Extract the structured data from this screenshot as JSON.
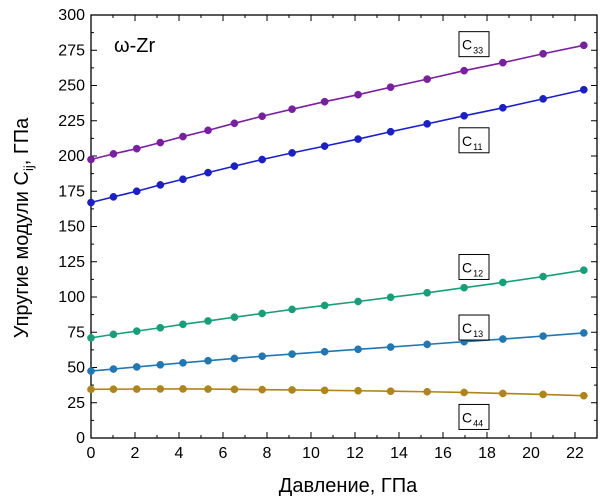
{
  "chart_data": {
    "type": "line",
    "title": "",
    "annotation": "ω-Zr",
    "xlabel": "Давление, ГПа",
    "ylabel_main": "Упругие модули C",
    "ylabel_sub": "ij",
    "ylabel_unit": ",  ГПа",
    "xlim": [
      0,
      23
    ],
    "ylim": [
      0,
      300
    ],
    "xticks": [
      0,
      2,
      4,
      6,
      8,
      10,
      12,
      14,
      16,
      18,
      20,
      22
    ],
    "yticks": [
      0,
      25,
      50,
      75,
      100,
      125,
      150,
      175,
      200,
      225,
      250,
      275,
      300
    ],
    "grid": false,
    "x": [
      0,
      1.02,
      2.08,
      3.15,
      4.18,
      5.32,
      6.52,
      7.78,
      9.14,
      10.62,
      12.14,
      13.62,
      15.28,
      16.96,
      18.72,
      20.55,
      22.4
    ],
    "series": [
      {
        "name": "C",
        "sub": "33",
        "color": "#7b1fa2",
        "values": [
          197.5,
          201.5,
          205.2,
          209.5,
          213.8,
          218.2,
          223.2,
          228.2,
          233.2,
          238.5,
          243.5,
          248.8,
          254.5,
          260.5,
          266.2,
          272.5,
          278.5
        ]
      },
      {
        "name": "C",
        "sub": "11",
        "color": "#1a1fcc",
        "values": [
          167.0,
          171.0,
          175.0,
          179.5,
          183.5,
          188.2,
          192.8,
          197.5,
          202.2,
          207.0,
          212.0,
          217.2,
          222.8,
          228.5,
          234.2,
          240.5,
          247.0
        ]
      },
      {
        "name": "C",
        "sub": "12",
        "color": "#16a07a",
        "values": [
          71.0,
          73.5,
          75.8,
          78.2,
          80.6,
          83.0,
          85.7,
          88.3,
          91.2,
          94.0,
          96.8,
          99.8,
          103.0,
          106.6,
          110.3,
          114.5,
          119.0
        ]
      },
      {
        "name": "C",
        "sub": "13",
        "color": "#1f77b4",
        "values": [
          47.5,
          48.9,
          50.4,
          51.9,
          53.3,
          54.8,
          56.4,
          58.0,
          59.5,
          61.2,
          62.9,
          64.5,
          66.4,
          68.3,
          70.2,
          72.3,
          74.5
        ]
      },
      {
        "name": "C",
        "sub": "44",
        "color": "#b08418",
        "values": [
          34.5,
          34.6,
          34.7,
          34.8,
          34.8,
          34.7,
          34.5,
          34.3,
          34.1,
          33.8,
          33.5,
          33.2,
          32.8,
          32.3,
          31.6,
          30.9,
          30.0
        ]
      }
    ],
    "series_label_positions": [
      "top-right of curve",
      "below curve at right",
      "above curve at right",
      "above curve at right",
      "below curve at right"
    ]
  }
}
